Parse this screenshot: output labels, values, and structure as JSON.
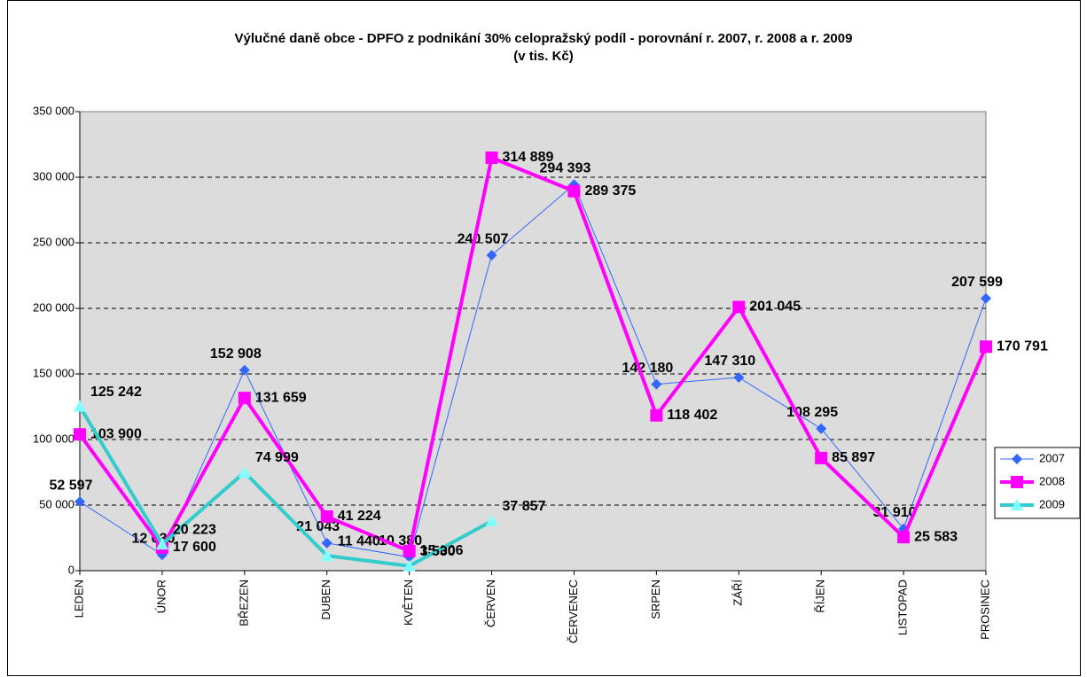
{
  "chart_data": {
    "type": "line",
    "title": "Výlučné daně obce - DPFO z podnikání 30% celopražský podíl - porovnání r. 2007, r. 2008 a r. 2009",
    "subtitle": "(v tis. Kč)",
    "categories": [
      "LEDEN",
      "ÚNOR",
      "BŘEZEN",
      "DUBEN",
      "KVĚTEN",
      "ČERVEN",
      "ČERVENEC",
      "SRPEN",
      "ZÁŘÍ",
      "ŘÍJEN",
      "LISTOPAD",
      "PROSINEC"
    ],
    "series": [
      {
        "name": "2007",
        "color": "#3366ff",
        "marker": "diamond",
        "values": [
          52597,
          12030,
          152908,
          21043,
          10380,
          240507,
          294393,
          142180,
          147310,
          108295,
          31910,
          207599
        ],
        "value_labels": [
          "52 597",
          "12 030",
          "152 908",
          "21 043",
          "10 380",
          "240 507",
          "294 393",
          "142 180",
          "147 310",
          "108 295",
          "31 910",
          "207 599"
        ]
      },
      {
        "name": "2008",
        "color": "#ff00ff",
        "marker": "square",
        "values": [
          103900,
          17600,
          131659,
          41224,
          15006,
          314889,
          289375,
          118402,
          201045,
          85897,
          25583,
          170791
        ],
        "value_labels": [
          "103 900",
          "17 600",
          "131 659",
          "41 224",
          "15 006",
          "314 889",
          "289 375",
          "118 402",
          "201 045",
          "85 897",
          "25 583",
          "170 791"
        ]
      },
      {
        "name": "2009",
        "color": "#33cccc",
        "marker": "triangle",
        "values": [
          125242,
          20223,
          74999,
          11440,
          3530,
          37857,
          null,
          null,
          null,
          null,
          null,
          null
        ],
        "value_labels": [
          "125 242",
          "20 223",
          "74 999",
          "11 440",
          "3 530",
          "37 857",
          null,
          null,
          null,
          null,
          null,
          null
        ]
      }
    ],
    "ylim": [
      0,
      350000
    ],
    "yticks": [
      0,
      {
        "value": 50000,
        "label": "50 000"
      },
      {
        "value": 100000,
        "label": "100 000"
      },
      {
        "value": 150000,
        "label": "150 000"
      },
      {
        "value": 200000,
        "label": "200 000"
      },
      {
        "value": 250000,
        "label": "250 000"
      },
      {
        "value": 300000,
        "label": "300 000"
      },
      {
        "value": 350000,
        "label": "350 000"
      }
    ],
    "grid": true,
    "legend": "right"
  }
}
